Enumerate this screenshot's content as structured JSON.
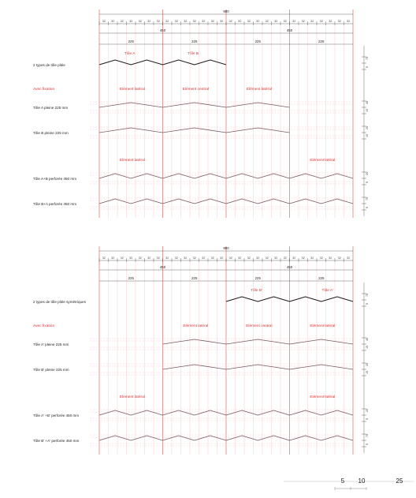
{
  "colors": {
    "grid_red": "#e45050",
    "grid_pale": "#f2b7b7",
    "sheet_dark": "#222222",
    "sheet_mauve": "#7a5a64",
    "label_red": "#e03030",
    "text": "#222222"
  },
  "dims": {
    "total": "900",
    "half": "450",
    "quarter": "225",
    "module": "32",
    "side": [
      "75",
      "5",
      "40",
      "15",
      "20",
      "15",
      "20",
      "5"
    ]
  },
  "sheets": [
    {
      "top_labels": [
        "Tôle A",
        "Tôle B"
      ],
      "type_label": "2 types de tôle pliée",
      "fixation": "Avec fixation",
      "group1_labels": [
        "Elément latéral",
        "Elément central",
        "Elément latéral"
      ],
      "row1": "Tôle A pleine 225 mm",
      "row2": "Tôle B pleine 225 mm",
      "group2_labels": [
        "Elément latéral",
        "Elément latéral"
      ],
      "row3": "Tôle A+B perforée 450 mm",
      "row4": "Tôle B+A perforée 450 mm"
    },
    {
      "top_labels": [
        "Tôle B'",
        "Tôle A'"
      ],
      "type_label": "2 types de tôle pliée symétriques",
      "fixation": "Avec fixation",
      "group1_labels": [
        "Elément latéral",
        "Elément central",
        "Elément latéral"
      ],
      "row1": "Tôle A' pleine 225 mm",
      "row2": "Tôle B' pleine 225 mm",
      "group2_labels": [
        "Elément latéral",
        "Elément latéral"
      ],
      "row3": "Tôle A' +B' perforée 450 mm",
      "row4": "Tôle B' +A' perforée 450 mm"
    }
  ],
  "scale_bar": [
    "5",
    "10",
    "25"
  ]
}
